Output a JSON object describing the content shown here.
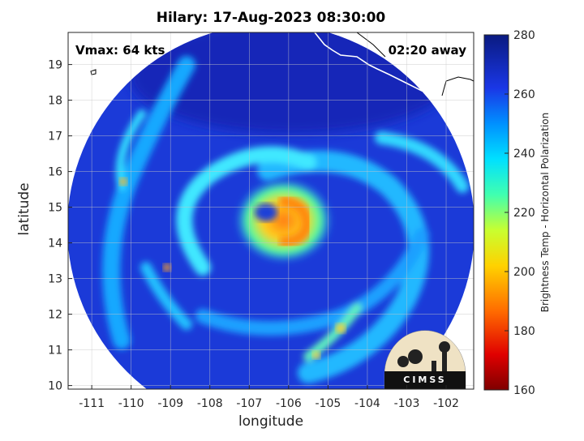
{
  "title": "Hilary: 17-Aug-2023 08:30:00",
  "vmax_label": "Vmax: 64 kts",
  "time_away_label": "02:20 away",
  "logo_text": "CIMSS",
  "axes": {
    "xlabel": "longitude",
    "ylabel": "latitude",
    "x_ticks": [
      -111,
      -110,
      -109,
      -108,
      -107,
      -106,
      -105,
      -104,
      -103,
      -102
    ],
    "y_ticks": [
      10,
      11,
      12,
      13,
      14,
      15,
      16,
      17,
      18,
      19
    ],
    "xlim": [
      -111.6,
      -101.3
    ],
    "ylim": [
      9.9,
      19.9
    ],
    "grid": true
  },
  "colorbar": {
    "label": "Brightness Temp - Horizontal Polarization",
    "range": [
      160,
      280
    ],
    "ticks": [
      160,
      180,
      200,
      220,
      240,
      260,
      280
    ]
  },
  "storm_center": {
    "lon": -106.3,
    "lat": 14.8
  },
  "colors": {
    "background_scan": "#1a37d6",
    "grid": "#c8c8c8",
    "coast": "#ffffff"
  }
}
